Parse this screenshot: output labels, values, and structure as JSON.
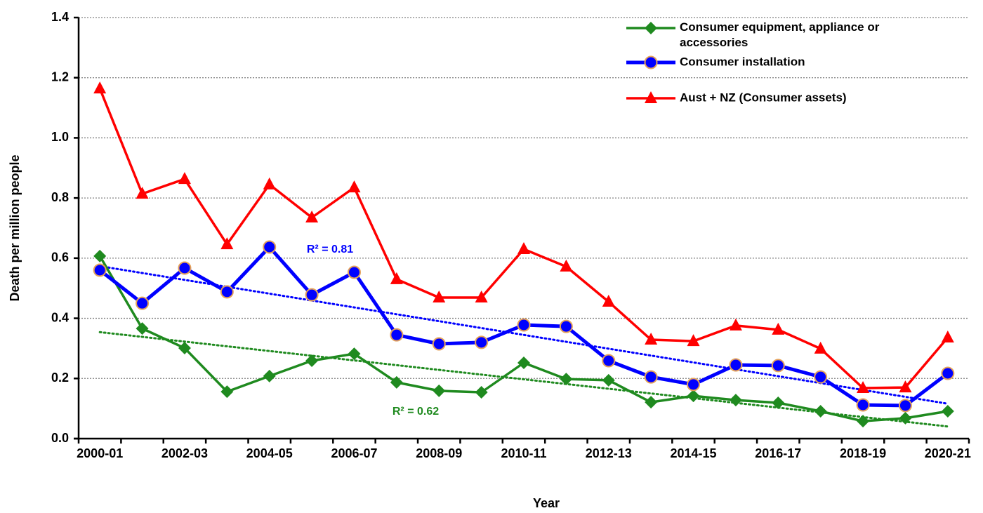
{
  "chart_data": {
    "type": "line",
    "x_label": "Year",
    "y_label": "Death per million people",
    "categories": [
      "2000-01",
      null,
      "2002-03",
      null,
      "2004-05",
      null,
      "2006-07",
      null,
      "2008-09",
      null,
      "2010-11",
      null,
      "2012-13",
      null,
      "2014-15",
      null,
      "2016-17",
      null,
      "2018-19",
      null,
      "2020-21"
    ],
    "ylim": [
      0,
      1.4
    ],
    "yticks": [
      {
        "value": 0,
        "label": "0.0"
      },
      0.2,
      0.4,
      0.6,
      0.8,
      {
        "value": 1,
        "label": "1.0"
      },
      1.2,
      1.4
    ],
    "grid": true,
    "legend": "top-right",
    "series": [
      {
        "name": "Consumer equipment, appliance or accessories",
        "color": "#1f8a1f",
        "marker": "diamond",
        "trendline": true,
        "values": [
          0.607,
          0.366,
          0.301,
          0.156,
          0.208,
          0.259,
          0.282,
          0.187,
          0.159,
          0.154,
          0.252,
          0.198,
          0.194,
          0.121,
          0.142,
          0.128,
          0.119,
          0.091,
          0.058,
          0.068,
          0.091
        ]
      },
      {
        "name": "Consumer installation",
        "color": "#0000ff",
        "marker": "circle",
        "trendline": true,
        "values": [
          0.56,
          0.45,
          0.567,
          0.488,
          0.637,
          0.478,
          0.553,
          0.345,
          0.315,
          0.32,
          0.378,
          0.373,
          0.259,
          0.205,
          0.18,
          0.245,
          0.243,
          0.205,
          0.112,
          0.11,
          0.217
        ]
      },
      {
        "name": "Aust + NZ (Consumer assets)",
        "color": "#ff0000",
        "marker": "triangle",
        "trendline": false,
        "values": [
          1.164,
          0.814,
          0.863,
          0.646,
          0.845,
          0.735,
          0.835,
          0.53,
          0.469,
          0.469,
          0.63,
          0.572,
          0.455,
          0.329,
          0.324,
          0.376,
          0.362,
          0.299,
          0.168,
          0.17,
          0.336
        ]
      }
    ],
    "annotations": [
      {
        "text": "R² = 0.81",
        "series": 1
      },
      {
        "text": "R² = 0.62",
        "series": 0
      }
    ]
  }
}
